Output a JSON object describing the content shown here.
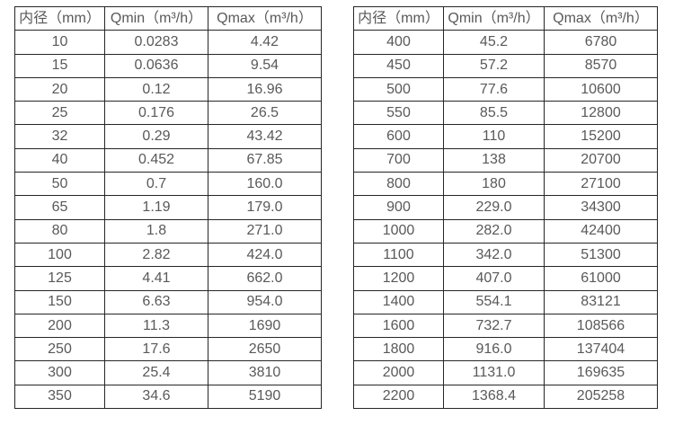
{
  "page": {
    "background_color": "#ffffff",
    "text_color": "#595959",
    "border_color": "#262626"
  },
  "tables": [
    {
      "name": "small-diameter-flow-table",
      "headers": [
        "内径（mm）",
        "Qmin（m³/h）",
        "Qmax（m³/h）"
      ],
      "rows": [
        [
          "10",
          "0.0283",
          "4.42"
        ],
        [
          "15",
          "0.0636",
          "9.54"
        ],
        [
          "20",
          "0.12",
          "16.96"
        ],
        [
          "25",
          "0.176",
          "26.5"
        ],
        [
          "32",
          "0.29",
          "43.42"
        ],
        [
          "40",
          "0.452",
          "67.85"
        ],
        [
          "50",
          "0.7",
          "160.0"
        ],
        [
          "65",
          "1.19",
          "179.0"
        ],
        [
          "80",
          "1.8",
          "271.0"
        ],
        [
          "100",
          "2.82",
          "424.0"
        ],
        [
          "125",
          "4.41",
          "662.0"
        ],
        [
          "150",
          "6.63",
          "954.0"
        ],
        [
          "200",
          "11.3",
          "1690"
        ],
        [
          "250",
          "17.6",
          "2650"
        ],
        [
          "300",
          "25.4",
          "3810"
        ],
        [
          "350",
          "34.6",
          "5190"
        ]
      ]
    },
    {
      "name": "large-diameter-flow-table",
      "headers": [
        "内径（mm）",
        "Qmin（m³/h）",
        "Qmax（m³/h）"
      ],
      "rows": [
        [
          "400",
          "45.2",
          "6780"
        ],
        [
          "450",
          "57.2",
          "8570"
        ],
        [
          "500",
          "77.6",
          "10600"
        ],
        [
          "550",
          "85.5",
          "12800"
        ],
        [
          "600",
          "110",
          "15200"
        ],
        [
          "700",
          "138",
          "20700"
        ],
        [
          "800",
          "180",
          "27100"
        ],
        [
          "900",
          "229.0",
          "34300"
        ],
        [
          "1000",
          "282.0",
          "42400"
        ],
        [
          "1100",
          "342.0",
          "51300"
        ],
        [
          "1200",
          "407.0",
          "61000"
        ],
        [
          "1400",
          "554.1",
          "83121"
        ],
        [
          "1600",
          "732.7",
          "108566"
        ],
        [
          "1800",
          "916.0",
          "137404"
        ],
        [
          "2000",
          "1131.0",
          "169635"
        ],
        [
          "2200",
          "1368.4",
          "205258"
        ]
      ]
    }
  ]
}
